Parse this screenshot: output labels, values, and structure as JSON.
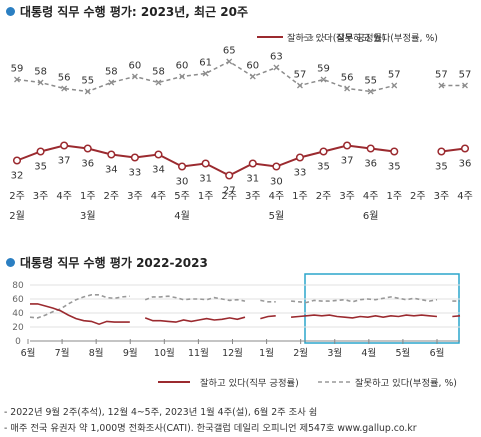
{
  "chart1": {
    "title": "대통령 직무 수행 평가: 2023년, 최근 20주",
    "legend": {
      "approve": "잘하고 있다(직무 긍정률)",
      "disapprove": "잘못하고 있다(부정률, %)"
    }
  },
  "chart2": {
    "title": "대통령 직무 수행 평가 2022-2023",
    "legend": {
      "approve": "잘하고 있다(직무 긍정률)",
      "disapprove": "잘못하고 있다(부정률, %)"
    }
  },
  "colors": {
    "approve": "#9b2a2f",
    "disapprove": "#8c8c8c",
    "accent": "#2b7fc2",
    "highlight": "#2ba6cc"
  },
  "notes": [
    "- 2022년 9월 2주(추석), 12월 4~5주, 2023년 1월 4주(설), 6월 2주 조사 쉼",
    "- 매주 전국 유권자 약 1,000명 전화조사(CATI). 한국갤럽 데일리 오피니언 제547호 www.gallup.co.kr"
  ],
  "chart_data": [
    {
      "type": "line",
      "title": "대통령 직무 수행 평가: 2023년, 최근 20주",
      "categories": [
        "2주",
        "3주",
        "4주",
        "1주",
        "2주",
        "3주",
        "4주",
        "5주",
        "1주",
        "2주",
        "3주",
        "4주",
        "1주",
        "2주",
        "3주",
        "4주",
        "1주",
        "2주",
        "3주",
        "4주"
      ],
      "month_labels": [
        {
          "index": 0,
          "label": "2월"
        },
        {
          "index": 3,
          "label": "3월"
        },
        {
          "index": 7,
          "label": "4월"
        },
        {
          "index": 11,
          "label": "5월"
        },
        {
          "index": 15,
          "label": "6월"
        }
      ],
      "series": [
        {
          "name": "잘하고 있다(직무 긍정률)",
          "values": [
            32,
            35,
            37,
            36,
            34,
            33,
            34,
            30,
            31,
            27,
            31,
            30,
            33,
            35,
            37,
            36,
            35,
            null,
            35,
            36
          ]
        },
        {
          "name": "잘못하고 있다(부정률, %)",
          "values": [
            59,
            58,
            56,
            55,
            58,
            60,
            58,
            60,
            61,
            65,
            60,
            63,
            57,
            59,
            56,
            55,
            57,
            null,
            57,
            57
          ]
        }
      ],
      "xlabel": "",
      "ylabel": ""
    },
    {
      "type": "line",
      "title": "대통령 직무 수행 평가 2022-2023",
      "x_labels": [
        "6월",
        "7월",
        "8월",
        "9월",
        "10월",
        "11월",
        "12월",
        "1월",
        "2월",
        "3월",
        "4월",
        "5월",
        "6월"
      ],
      "ylim": [
        0,
        80
      ],
      "yticks": [
        0,
        20,
        40,
        60,
        80
      ],
      "series": [
        {
          "name": "잘하고 있다(직무 긍정률)",
          "values": [
            53,
            53,
            50,
            47,
            43,
            37,
            32,
            29,
            28,
            24,
            28,
            27,
            27,
            27,
            null,
            33,
            29,
            29,
            28,
            27,
            30,
            28,
            30,
            32,
            30,
            31,
            33,
            31,
            34,
            null,
            32,
            35,
            36,
            null,
            34,
            35,
            36,
            37,
            36,
            37,
            35,
            34,
            33,
            35,
            34,
            36,
            34,
            36,
            35,
            37,
            36,
            37,
            36,
            35,
            null,
            35,
            36
          ]
        },
        {
          "name": "잘못하고 있다(부정률, %)",
          "values": [
            34,
            33,
            37,
            42,
            46,
            53,
            59,
            63,
            66,
            66,
            62,
            61,
            63,
            64,
            null,
            59,
            63,
            63,
            64,
            62,
            59,
            60,
            60,
            59,
            62,
            60,
            58,
            59,
            57,
            null,
            58,
            56,
            56,
            null,
            57,
            56,
            55,
            58,
            57,
            57,
            58,
            59,
            56,
            59,
            60,
            59,
            61,
            63,
            61,
            59,
            61,
            59,
            57,
            59,
            null,
            57,
            57
          ]
        }
      ],
      "xlabel": "",
      "ylabel": ""
    }
  ]
}
